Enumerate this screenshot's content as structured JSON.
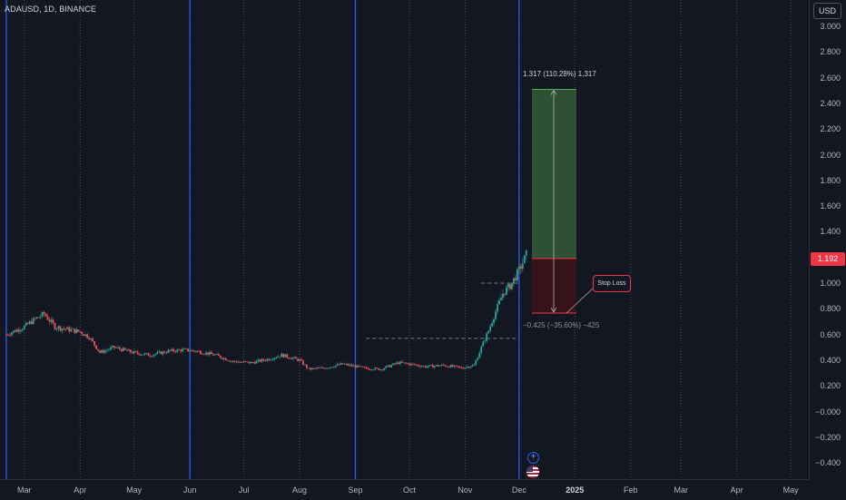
{
  "symbol": {
    "label": "ADAUSD, 1D, BINANCE"
  },
  "price_axis": {
    "currency": "USD",
    "ticks": [
      "3.000",
      "2.800",
      "2.600",
      "2.400",
      "2.200",
      "2.000",
      "1.800",
      "1.600",
      "1.400",
      "1.200",
      "1.000",
      "0.800",
      "0.600",
      "0.400",
      "0.200",
      "−0.000",
      "−0.200",
      "−0.400"
    ],
    "last_price": "1.192",
    "last_price_color": "#f23645"
  },
  "time_axis": {
    "ticks": [
      "Mar",
      "Apr",
      "May",
      "Jun",
      "Jul",
      "Aug",
      "Sep",
      "Oct",
      "Nov",
      "Dec",
      "2025",
      "Feb",
      "Mar",
      "Apr",
      "May"
    ]
  },
  "position_tool": {
    "target_label": "1.317 (110.28%) 1,317",
    "stop_label": "−0.425 (−35.60%) −425",
    "stop_badge": "Stop Loss",
    "entry": 1.192,
    "target": 2.509,
    "stop": 0.767,
    "profit_color": "#2f5336",
    "loss_color": "#3a1219"
  },
  "chart_data": {
    "type": "candlestick",
    "title": "",
    "xlabel": "",
    "ylabel": "",
    "ylim": [
      -0.46,
      3.08
    ],
    "x_range": [
      "2024-02-18",
      "2025-05-10"
    ],
    "price_path": [
      [
        "2024-02-20",
        0.6
      ],
      [
        "2024-03-01",
        0.66
      ],
      [
        "2024-03-07",
        0.72
      ],
      [
        "2024-03-12",
        0.76
      ],
      [
        "2024-03-18",
        0.66
      ],
      [
        "2024-03-25",
        0.64
      ],
      [
        "2024-04-01",
        0.62
      ],
      [
        "2024-04-06",
        0.58
      ],
      [
        "2024-04-12",
        0.46
      ],
      [
        "2024-04-20",
        0.5
      ],
      [
        "2024-04-30",
        0.46
      ],
      [
        "2024-05-10",
        0.44
      ],
      [
        "2024-05-20",
        0.47
      ],
      [
        "2024-05-28",
        0.48
      ],
      [
        "2024-06-05",
        0.47
      ],
      [
        "2024-06-15",
        0.44
      ],
      [
        "2024-06-25",
        0.39
      ],
      [
        "2024-07-05",
        0.38
      ],
      [
        "2024-07-15",
        0.41
      ],
      [
        "2024-07-22",
        0.44
      ],
      [
        "2024-08-01",
        0.4
      ],
      [
        "2024-08-06",
        0.33
      ],
      [
        "2024-08-15",
        0.34
      ],
      [
        "2024-08-25",
        0.37
      ],
      [
        "2024-09-05",
        0.34
      ],
      [
        "2024-09-15",
        0.33
      ],
      [
        "2024-09-25",
        0.38
      ],
      [
        "2024-10-01",
        0.37
      ],
      [
        "2024-10-10",
        0.35
      ],
      [
        "2024-10-20",
        0.36
      ],
      [
        "2024-10-30",
        0.34
      ],
      [
        "2024-11-06",
        0.36
      ],
      [
        "2024-11-10",
        0.5
      ],
      [
        "2024-11-14",
        0.63
      ],
      [
        "2024-11-18",
        0.78
      ],
      [
        "2024-11-22",
        0.92
      ],
      [
        "2024-11-26",
        0.98
      ],
      [
        "2024-11-29",
        1.05
      ],
      [
        "2024-12-02",
        1.13
      ],
      [
        "2024-12-05",
        1.22
      ]
    ],
    "horizontal_lines": [
      {
        "from": "2024-09-07",
        "to": "2024-12-01",
        "value": 0.57
      },
      {
        "from": "2024-11-10",
        "to": "2024-12-01",
        "value": 1.0
      }
    ],
    "vertical_markers": [
      "2024-02-20",
      "2024-06-01",
      "2024-09-01",
      "2024-12-01"
    ]
  }
}
